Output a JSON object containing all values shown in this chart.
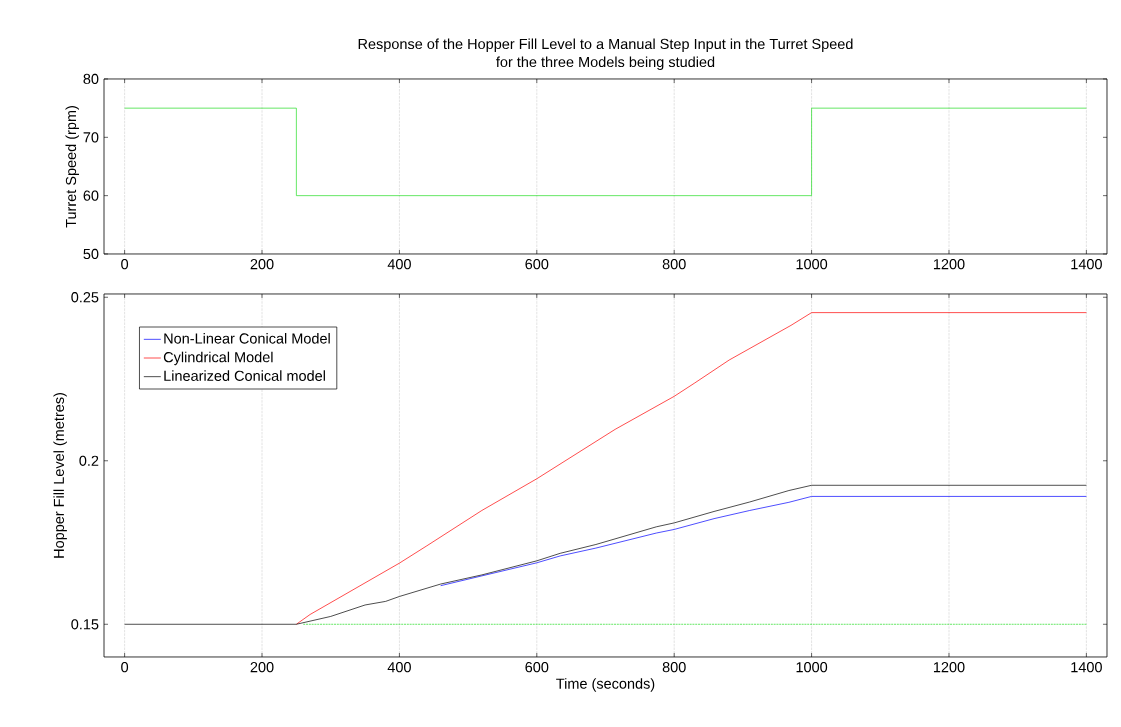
{
  "chart_data": [
    {
      "type": "line",
      "title": "Response of the Hopper Fill Level to a Manual Step Input in the Turret Speed\nfor the three Models being studied",
      "ylabel": "Turret Speed (rpm)",
      "xlim": [
        -30,
        1430
      ],
      "ylim": [
        50,
        80
      ],
      "xticks": [
        0,
        200,
        400,
        600,
        800,
        1000,
        1200,
        1400
      ],
      "yticks": [
        50,
        60,
        70,
        80
      ],
      "grid": "x",
      "legend": false,
      "series": [
        {
          "color": "#22dd22",
          "x": [
            0,
            250,
            250,
            1000,
            1000,
            1400
          ],
          "values": [
            75,
            75,
            60,
            60,
            75,
            75
          ]
        }
      ]
    },
    {
      "type": "line",
      "xlabel": "Time (seconds)",
      "ylabel": "Hopper Fill Level (metres)",
      "xlim": [
        -30,
        1430
      ],
      "ylim": [
        0.14,
        0.251
      ],
      "xticks": [
        0,
        200,
        400,
        600,
        800,
        1000,
        1200,
        1400
      ],
      "yticks": [
        0.15,
        0.2,
        0.25
      ],
      "grid": "x",
      "legend": "top left",
      "series": [
        {
          "color": "#22dd22",
          "line_style": "dotted",
          "x": [
            260,
            1400
          ],
          "values": [
            0.15,
            0.15
          ]
        },
        {
          "name": "Non-Linear Conical Model",
          "color": "#0000ff",
          "x": [
            460,
            520,
            600,
            634,
            686,
            774,
            800,
            858,
            910,
            967,
            1000,
            1400
          ],
          "values": [
            0.1618,
            0.1648,
            0.1688,
            0.1709,
            0.1733,
            0.1779,
            0.179,
            0.1823,
            0.1848,
            0.1873,
            0.1891,
            0.1891
          ]
        },
        {
          "name": "Cylindrical Model",
          "color": "#ff0000",
          "x": [
            250,
            270,
            400,
            440,
            520,
            600,
            714,
            800,
            830,
            880,
            970,
            1000,
            1400
          ],
          "values": [
            0.15,
            0.153,
            0.1687,
            0.174,
            0.1848,
            0.1945,
            0.2096,
            0.2197,
            0.2238,
            0.2308,
            0.2414,
            0.2453,
            0.2453
          ]
        },
        {
          "name": "Linearized Conical model",
          "color": "#000000",
          "x": [
            0,
            250,
            300,
            350,
            380,
            400,
            460,
            520,
            600,
            634,
            686,
            774,
            800,
            858,
            910,
            967,
            1000,
            1400
          ],
          "values": [
            0.15,
            0.15,
            0.1524,
            0.1559,
            0.157,
            0.1585,
            0.1623,
            0.1651,
            0.1694,
            0.1717,
            0.1744,
            0.1798,
            0.181,
            0.1845,
            0.1874,
            0.1909,
            0.1925,
            0.1925
          ]
        }
      ]
    }
  ]
}
